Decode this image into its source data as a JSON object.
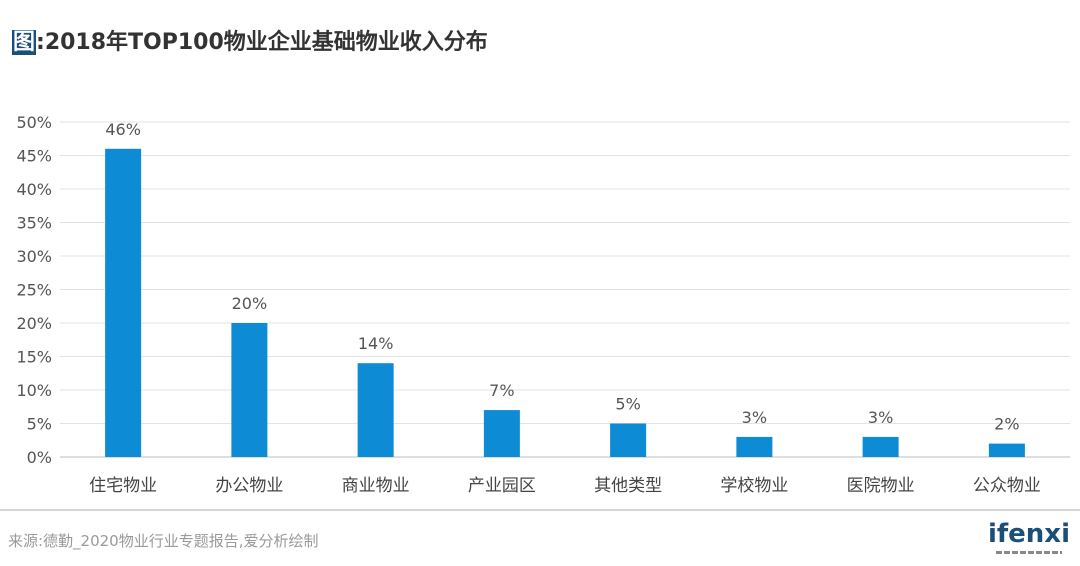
{
  "title": {
    "prefix": "图",
    "text": ":2018年TOP100物业企业基础物业收入分布"
  },
  "chart_data": {
    "type": "bar",
    "title": "2018年TOP100物业企业基础物业收入分布",
    "categories": [
      "住宅物业",
      "办公物业",
      "商业物业",
      "产业园区",
      "其他类型",
      "学校物业",
      "医院物业",
      "公众物业"
    ],
    "values": [
      46,
      20,
      14,
      7,
      5,
      3,
      3,
      2
    ],
    "data_labels": [
      "46%",
      "20%",
      "14%",
      "7%",
      "5%",
      "3%",
      "3%",
      "2%"
    ],
    "ylim": [
      0,
      50
    ],
    "yticks": [
      "0%",
      "5%",
      "10%",
      "15%",
      "20%",
      "25%",
      "30%",
      "35%",
      "40%",
      "45%",
      "50%"
    ],
    "xlabel": "",
    "ylabel": "",
    "grid": true,
    "bar_color": "#0d8bd4"
  },
  "footer": {
    "source": "来源:德勤_2020物业行业专题报告,爱分析绘制",
    "logo": "ifenxi"
  }
}
